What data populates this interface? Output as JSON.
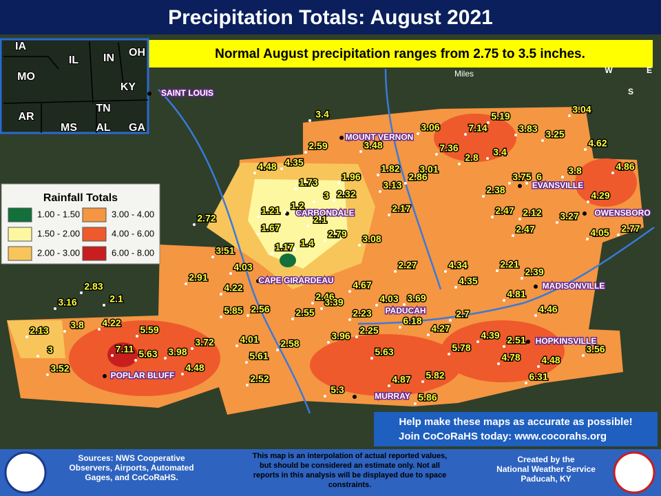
{
  "title": "Precipitation Totals: August 2021",
  "subtitle": "Normal August precipitation ranges from 2.75 to 3.5 inches.",
  "inset": {
    "states": [
      "IA",
      "IL",
      "IN",
      "OH",
      "MO",
      "KY",
      "AR",
      "TN",
      "MS",
      "AL",
      "GA"
    ]
  },
  "legend": {
    "title": "Rainfall Totals",
    "items": [
      {
        "label": "1.00 - 1.50",
        "color": "#12703a"
      },
      {
        "label": "1.50 - 2.00",
        "color": "#fdf7a0"
      },
      {
        "label": "2.00 - 3.00",
        "color": "#f8c55a"
      },
      {
        "label": "3.00 - 4.00",
        "color": "#f59642"
      },
      {
        "label": "4.00 - 6.00",
        "color": "#ee5a2c"
      },
      {
        "label": "6.00 - 8.00",
        "color": "#c81e1e"
      }
    ]
  },
  "cities": [
    "SAINT LOUIS",
    "MOUNT VERNON",
    "CARBONDALE",
    "CAPE GIRARDEAU",
    "PADUCAH",
    "EVANSVILLE",
    "OWENSBORO",
    "MADISONVILLE",
    "HOPKINSVILLE",
    "POPLAR BLUFF",
    "MURRAY"
  ],
  "stations": [
    3.4,
    3.06,
    7.14,
    5.19,
    3.04,
    3.83,
    3.25,
    4.62,
    2.59,
    3.48,
    7.36,
    3.4,
    2.8,
    4.48,
    4.35,
    1.96,
    1.82,
    3.01,
    3.8,
    4.86,
    1.73,
    3,
    2.32,
    3.13,
    2.86,
    2.38,
    3.75,
    6,
    4.29,
    1.21,
    1.2,
    2.17,
    2.47,
    2.12,
    2.72,
    1.67,
    2.1,
    3.27,
    2.79,
    2.47,
    4.05,
    2.77,
    1.17,
    1.4,
    3.08,
    3.51,
    2.27,
    4.34,
    2.21,
    4.03,
    2.91,
    2.39,
    4.22,
    4.35,
    4.67,
    2.83,
    2.1,
    2.46,
    3.39,
    4.81,
    4.03,
    3.69,
    3.16,
    5.85,
    2.56,
    2.55,
    2.23,
    4.46,
    6.18,
    2.7,
    3.8,
    4.22,
    5.59,
    4.27,
    2.13,
    4.01,
    2.58,
    3.96,
    2.25,
    4.39,
    2.51,
    3,
    7.11,
    5.63,
    3.98,
    3.72,
    5.63,
    5.78,
    3.56,
    4.48,
    5.61,
    4.78,
    4.48,
    3.52,
    2.52,
    6.31,
    5.82,
    4.87,
    5.3,
    5.86
  ],
  "scale": "Miles",
  "compass": [
    "W",
    "E",
    "S"
  ],
  "cocorahs": [
    "Help make these maps as accurate as possible!",
    "Join CoCoRaHS today: www.cocorahs.org"
  ],
  "footer": {
    "sources": [
      "Sources: NWS Cooperative",
      "Observers, Airports, Automated",
      "Gages, and CoCoRaHS."
    ],
    "note": [
      "This map is an interpolation of actual reported values,",
      "but should be considered an estimate only. Not all",
      "reports in this analysis will be displayed due to space",
      "constraints."
    ],
    "credit": [
      "Created by the",
      "National Weather Service",
      "Paducah, KY"
    ]
  }
}
